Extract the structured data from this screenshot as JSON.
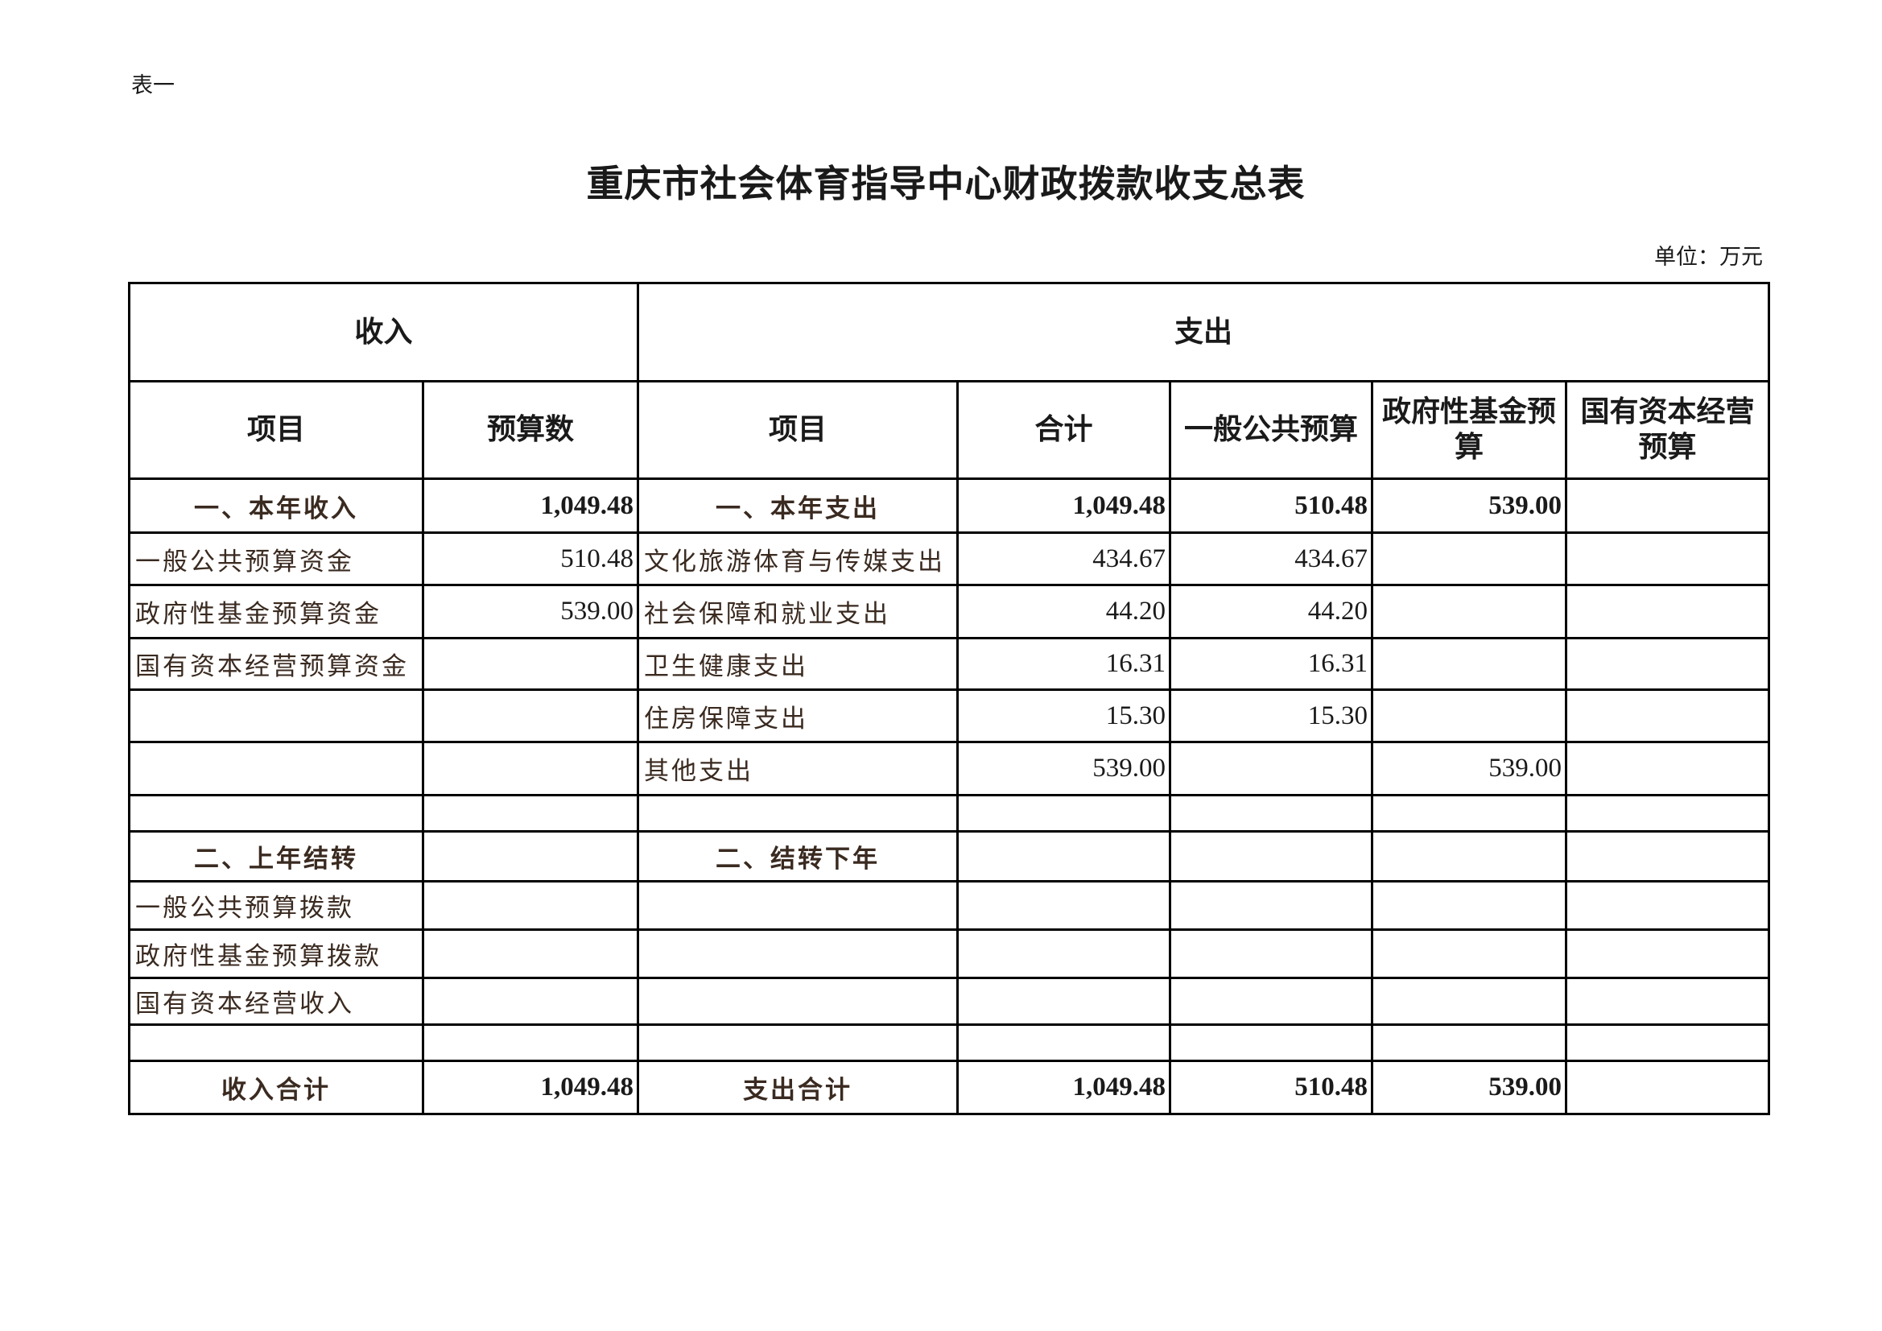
{
  "doc": {
    "label": "表一",
    "title": "重庆市社会体育指导中心财政拨款收支总表",
    "unit": "单位：万元"
  },
  "header": {
    "income": "收入",
    "expense": "支出",
    "columns": [
      "项目",
      "预算数",
      "项目",
      "合计",
      "一般公共预算",
      "政府性基金预算",
      "国有资本经营预算"
    ]
  },
  "rows": [
    {
      "kind": "section",
      "cells": [
        "一、本年收入",
        "1,049.48",
        "一、本年支出",
        "1,049.48",
        "510.48",
        "539.00",
        ""
      ]
    },
    {
      "kind": "item",
      "cells": [
        "一般公共预算资金",
        "510.48",
        "文化旅游体育与传媒支出",
        "434.67",
        "434.67",
        "",
        ""
      ]
    },
    {
      "kind": "item",
      "cells": [
        "政府性基金预算资金",
        "539.00",
        "社会保障和就业支出",
        "44.20",
        "44.20",
        "",
        ""
      ]
    },
    {
      "kind": "item",
      "cells": [
        "国有资本经营预算资金",
        "",
        "卫生健康支出",
        "16.31",
        "16.31",
        "",
        ""
      ]
    },
    {
      "kind": "item",
      "cells": [
        "",
        "",
        "住房保障支出",
        "15.30",
        "15.30",
        "",
        ""
      ]
    },
    {
      "kind": "item",
      "cells": [
        "",
        "",
        "其他支出",
        "539.00",
        "",
        "539.00",
        ""
      ]
    },
    {
      "kind": "blank",
      "cells": [
        "",
        "",
        "",
        "",
        "",
        "",
        ""
      ]
    },
    {
      "kind": "section",
      "cells": [
        "二、上年结转",
        "",
        "二、结转下年",
        "",
        "",
        "",
        ""
      ]
    },
    {
      "kind": "item",
      "cells": [
        "一般公共预算拨款",
        "",
        "",
        "",
        "",
        "",
        ""
      ]
    },
    {
      "kind": "item",
      "cells": [
        "政府性基金预算拨款",
        "",
        "",
        "",
        "",
        "",
        ""
      ]
    },
    {
      "kind": "item",
      "cells": [
        "国有资本经营收入",
        "",
        "",
        "",
        "",
        "",
        ""
      ]
    },
    {
      "kind": "blank",
      "cells": [
        "",
        "",
        "",
        "",
        "",
        "",
        ""
      ]
    },
    {
      "kind": "section",
      "cells": [
        "收入合计",
        "1,049.48",
        "支出合计",
        "1,049.48",
        "510.48",
        "539.00",
        ""
      ]
    }
  ]
}
